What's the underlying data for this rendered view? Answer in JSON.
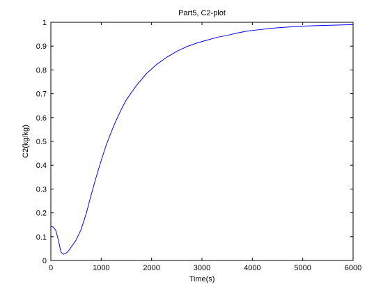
{
  "chart_data": {
    "type": "line",
    "title": "Part5, C2-plot",
    "xlabel": "Time(s)",
    "ylabel": "C2(kg/kg)",
    "xlim": [
      0,
      6000
    ],
    "ylim": [
      0,
      1
    ],
    "xticks": [
      0,
      1000,
      2000,
      3000,
      4000,
      5000,
      6000
    ],
    "yticks": [
      0,
      0.1,
      0.2,
      0.3,
      0.4,
      0.5,
      0.6,
      0.7,
      0.8,
      0.9,
      1
    ],
    "grid": false,
    "series": [
      {
        "color": "#0000ff",
        "x": [
          0,
          50,
          100,
          150,
          200,
          250,
          300,
          350,
          400,
          500,
          600,
          700,
          800,
          900,
          1000,
          1100,
          1200,
          1300,
          1400,
          1500,
          1700,
          1900,
          2100,
          2300,
          2500,
          2700,
          2900,
          3100,
          3300,
          3500,
          3700,
          3900,
          4100,
          4300,
          4500,
          4700,
          5000,
          5300,
          5600,
          6000
        ],
        "y": [
          0.143,
          0.14,
          0.125,
          0.085,
          0.035,
          0.026,
          0.03,
          0.04,
          0.055,
          0.085,
          0.13,
          0.195,
          0.275,
          0.35,
          0.42,
          0.485,
          0.54,
          0.59,
          0.635,
          0.675,
          0.735,
          0.785,
          0.823,
          0.853,
          0.878,
          0.898,
          0.913,
          0.925,
          0.937,
          0.945,
          0.955,
          0.963,
          0.968,
          0.973,
          0.977,
          0.98,
          0.984,
          0.986,
          0.988,
          0.99
        ]
      }
    ]
  }
}
